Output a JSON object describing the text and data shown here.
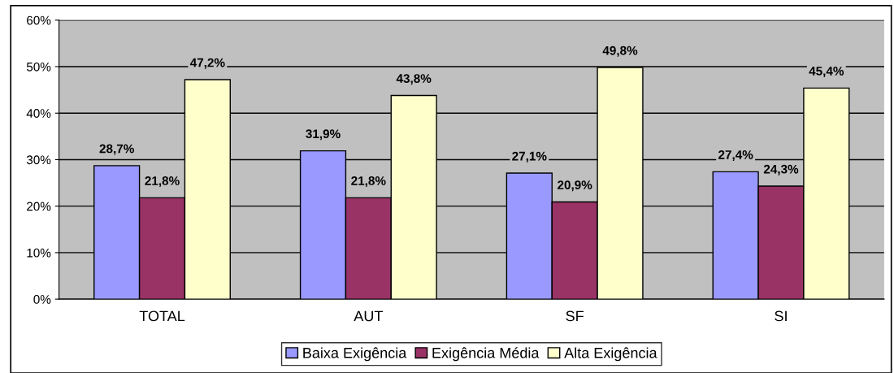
{
  "chart_data": {
    "type": "bar",
    "categories": [
      "TOTAL",
      "AUT",
      "SF",
      "SI"
    ],
    "series": [
      {
        "name": "Baixa Exigência",
        "color": "#9999ff",
        "values": [
          28.7,
          31.9,
          27.1,
          27.4
        ],
        "value_labels": [
          "28,7%",
          "31,9%",
          "27,1%",
          "27,4%"
        ]
      },
      {
        "name": "Exigência Média",
        "color": "#993366",
        "values": [
          21.8,
          21.8,
          20.9,
          24.3
        ],
        "value_labels": [
          "21,8%",
          "21,8%",
          "20,9%",
          "24,3%"
        ]
      },
      {
        "name": "Alta Exigência",
        "color": "#ffffcc",
        "values": [
          47.2,
          43.8,
          49.8,
          45.4
        ],
        "value_labels": [
          "47,2%",
          "43,8%",
          "49,8%",
          "45,4%"
        ]
      }
    ],
    "ylim": [
      0,
      60
    ],
    "yticks": [
      {
        "value": 0,
        "label": "0%"
      },
      {
        "value": 10,
        "label": "10%"
      },
      {
        "value": 20,
        "label": "20%"
      },
      {
        "value": 30,
        "label": "30%"
      },
      {
        "value": 40,
        "label": "40%"
      },
      {
        "value": 50,
        "label": "50%"
      },
      {
        "value": 60,
        "label": "60%"
      }
    ],
    "grid": "y",
    "legend": "bottom"
  }
}
